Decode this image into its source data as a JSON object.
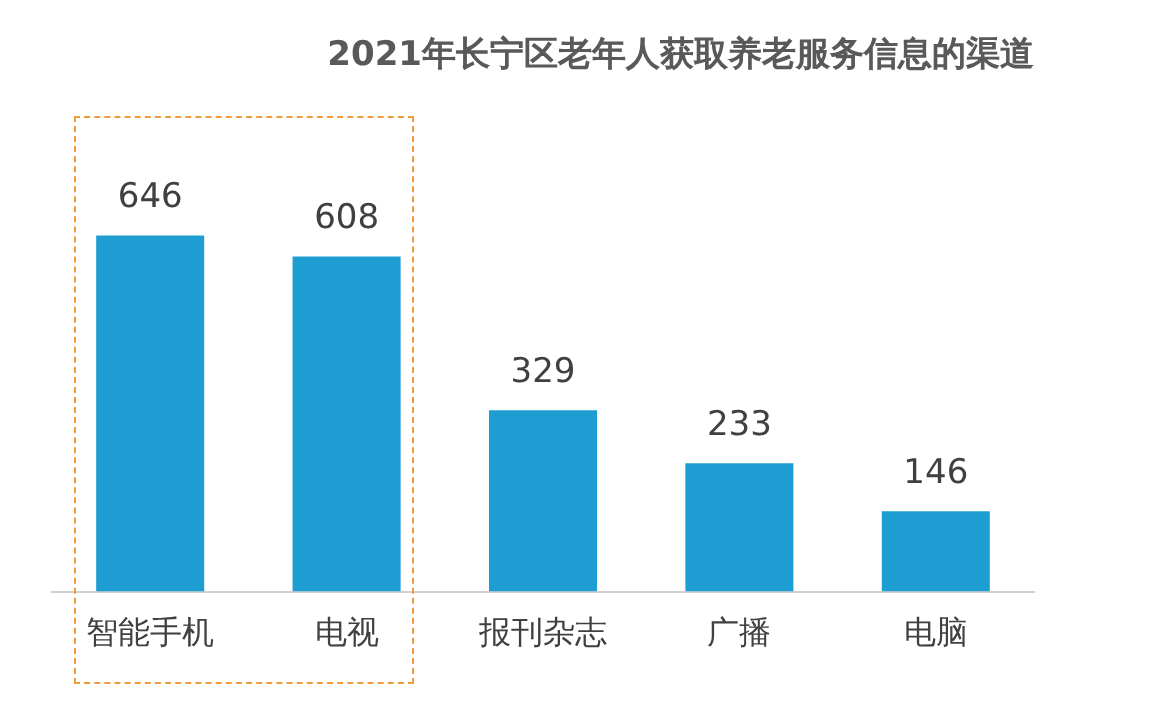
{
  "chart_data": {
    "type": "bar",
    "title": "2021年长宁区老年人获取养老服务信息的渠道",
    "categories": [
      "智能手机",
      "电视",
      "报刊杂志",
      "广播",
      "电脑"
    ],
    "values": [
      646,
      608,
      329,
      233,
      146
    ],
    "color": "#1e9dd3",
    "data_labels": true,
    "grid": false,
    "legend": false
  }
}
